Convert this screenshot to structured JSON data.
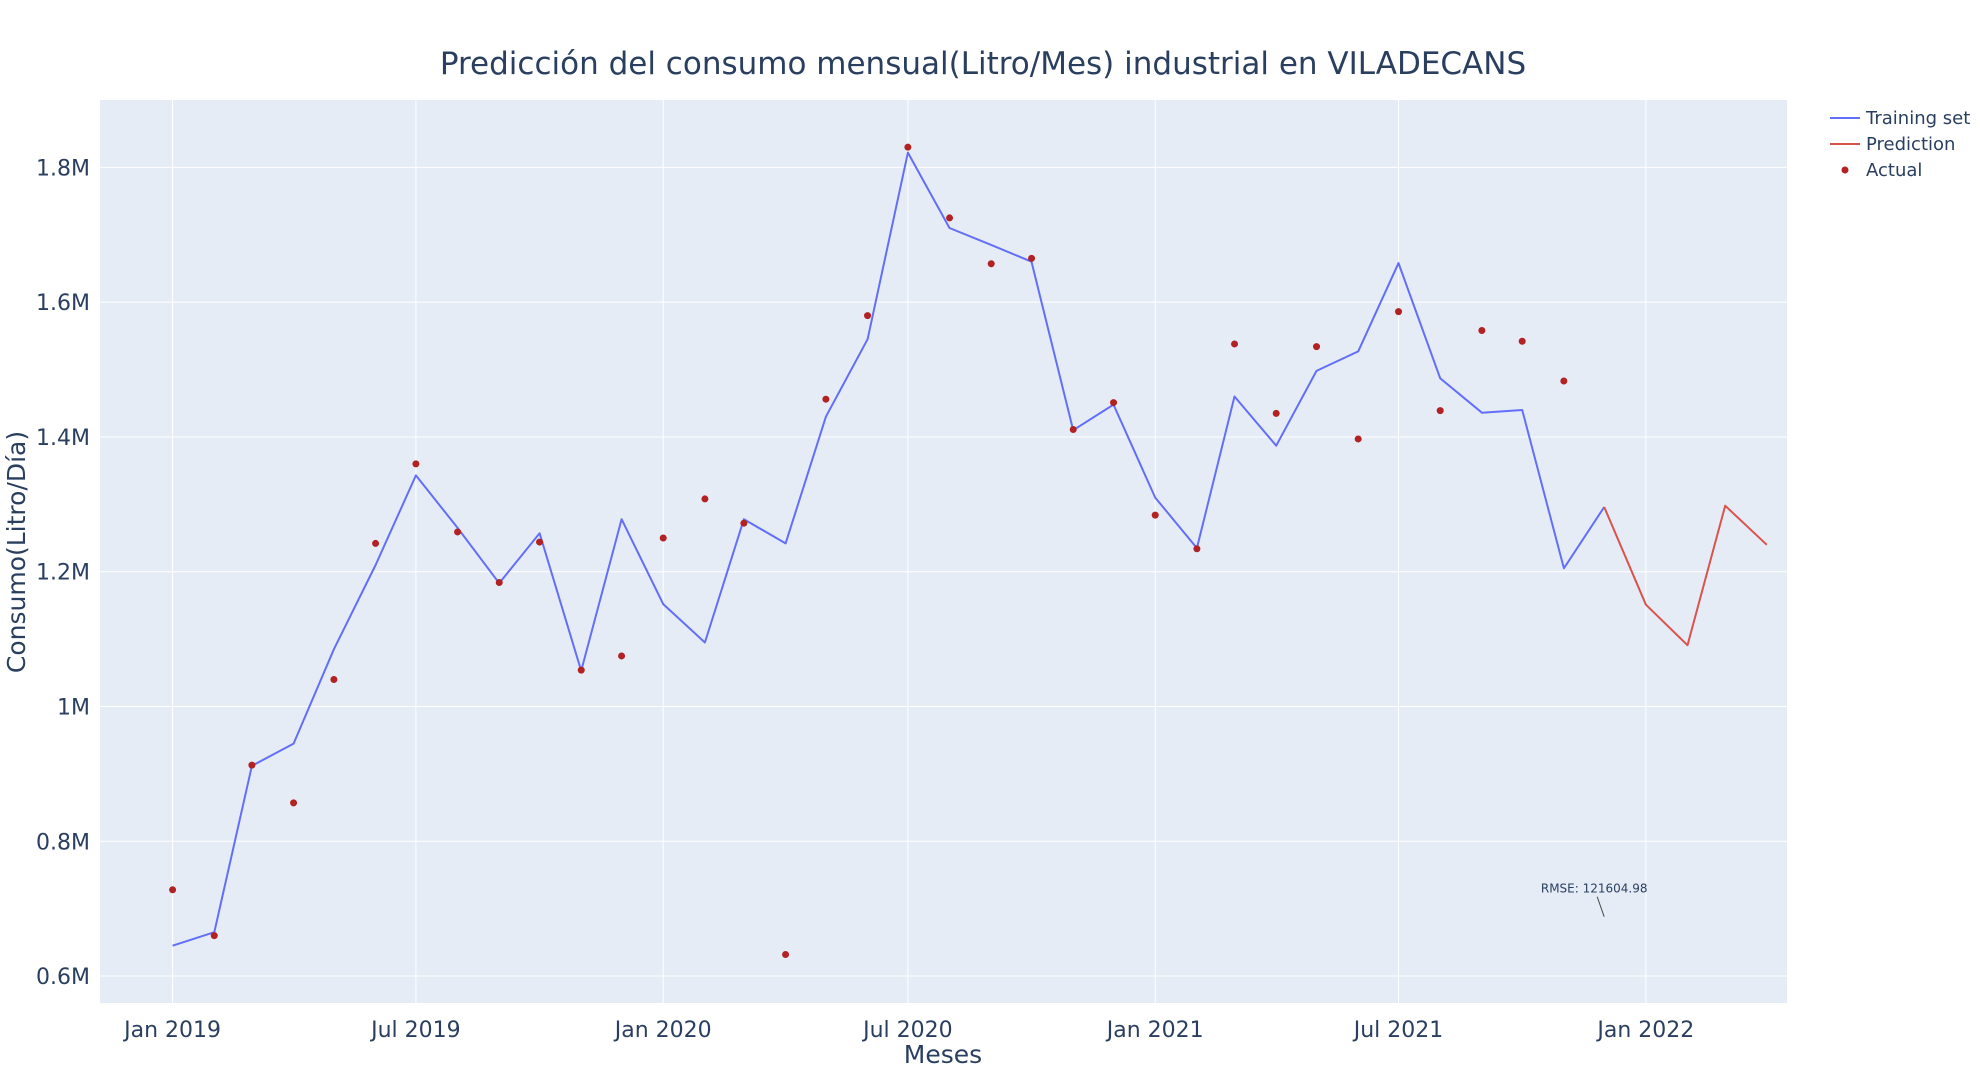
{
  "chart_data": {
    "type": "line",
    "title": "Predicción del consumo mensual(Litro/Mes) industrial en VILADECANS",
    "xlabel": "Meses",
    "ylabel": "Consumo(Litro/Día)",
    "x_tick_labels": [
      "Jan 2019",
      "Jul 2019",
      "Jan 2020",
      "Jul 2020",
      "Jan 2021",
      "Jul 2021",
      "Jan 2022"
    ],
    "y_tick_labels": [
      "0.6M",
      "0.8M",
      "1M",
      "1.2M",
      "1.4M",
      "1.6M",
      "1.8M"
    ],
    "ylim": [
      560000,
      1900000
    ],
    "xlim": [
      "2018-11-08",
      "2022-04-16"
    ],
    "grid": true,
    "legend_position": "top-right",
    "background_color": "#e5ecf6",
    "series": [
      {
        "name": "Training set",
        "kind": "line",
        "color": "#636efa",
        "x": [
          "2019-01",
          "2019-02",
          "2019-03",
          "2019-04",
          "2019-05",
          "2019-06",
          "2019-07",
          "2019-08",
          "2019-09",
          "2019-10",
          "2019-11",
          "2019-12",
          "2020-01",
          "2020-02",
          "2020-03",
          "2020-04",
          "2020-05",
          "2020-06",
          "2020-07",
          "2020-08",
          "2020-09",
          "2020-10",
          "2020-11",
          "2020-12",
          "2021-01",
          "2021-02",
          "2021-03",
          "2021-04",
          "2021-05",
          "2021-06",
          "2021-07",
          "2021-08",
          "2021-09",
          "2021-10",
          "2021-11",
          "2021-12"
        ],
        "y": [
          645000,
          665000,
          912000,
          945000,
          1085000,
          1210000,
          1343000,
          1265000,
          1183000,
          1257000,
          1053000,
          1278000,
          1152000,
          1095000,
          1278000,
          1242000,
          1430000,
          1545000,
          1822000,
          1710000,
          1685000,
          1660000,
          1410000,
          1448000,
          1310000,
          1235000,
          1460000,
          1387000,
          1498000,
          1527000,
          1658000,
          1487000,
          1436000,
          1440000,
          1205000,
          1296000
        ]
      },
      {
        "name": "Prediction",
        "kind": "line",
        "color": "#d9534f",
        "x": [
          "2021-12",
          "2022-01",
          "2022-02",
          "2022-03",
          "2022-04"
        ],
        "y": [
          1296000,
          1151000,
          1091000,
          1298000,
          1240000
        ]
      },
      {
        "name": "Actual",
        "kind": "scatter",
        "color": "#b22222",
        "x": [
          "2019-01",
          "2019-02",
          "2019-03",
          "2019-04",
          "2019-05",
          "2019-06",
          "2019-07",
          "2019-08",
          "2019-09",
          "2019-10",
          "2019-11",
          "2019-12",
          "2020-01",
          "2020-02",
          "2020-03",
          "2020-04",
          "2020-05",
          "2020-06",
          "2020-07",
          "2020-08",
          "2020-09",
          "2020-10",
          "2020-11",
          "2020-12",
          "2021-01",
          "2021-02",
          "2021-03",
          "2021-04",
          "2021-05",
          "2021-06",
          "2021-07",
          "2021-08",
          "2021-09",
          "2021-10",
          "2021-11"
        ],
        "y": [
          728000,
          660000,
          913000,
          857000,
          1040000,
          1242000,
          1360000,
          1259000,
          1184000,
          1244000,
          1054000,
          1075000,
          1250000,
          1308000,
          1272000,
          632000,
          1456000,
          1580000,
          1830000,
          1725000,
          1657000,
          1665000,
          1411000,
          1451000,
          1284000,
          1234000,
          1538000,
          1435000,
          1534000,
          1397000,
          1586000,
          1439000,
          1558000,
          1542000,
          1483000
        ]
      }
    ],
    "annotations": [
      {
        "text": "RMSE: 121604.98",
        "x": "2021-12",
        "y": 688000
      }
    ]
  }
}
